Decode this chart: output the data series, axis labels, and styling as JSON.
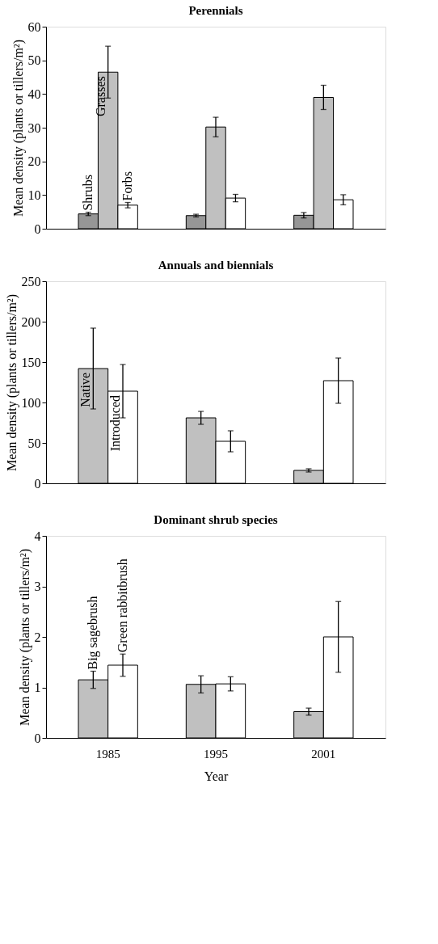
{
  "chart_data": [
    {
      "type": "bar",
      "title": "Perennials",
      "ylabel": "Mean density (plants or tillers/m²)",
      "categories": [
        "1985",
        "1995",
        "2001"
      ],
      "ylim": [
        0,
        60
      ],
      "yticks": [
        0,
        10,
        20,
        30,
        40,
        50,
        60
      ],
      "grid": false,
      "legend": false,
      "tick_labels": "y",
      "series": [
        {
          "name": "Shrubs",
          "color": "#969696",
          "values": [
            4.4,
            3.9,
            4.0
          ],
          "errors": [
            0.5,
            0.4,
            0.8
          ]
        },
        {
          "name": "Grasses",
          "color": "#c0c0c0",
          "values": [
            46.5,
            30.2,
            39.0
          ],
          "errors": [
            7.7,
            2.9,
            3.6
          ]
        },
        {
          "name": "Forbs",
          "color": "#ffffff",
          "values": [
            7.0,
            9.1,
            8.6
          ],
          "errors": [
            0.8,
            1.1,
            1.5
          ]
        }
      ]
    },
    {
      "type": "bar",
      "title": "Annuals and biennials",
      "ylabel": "Mean density (plants or tillers/m²)",
      "categories": [
        "1985",
        "1995",
        "2001"
      ],
      "ylim": [
        0,
        250
      ],
      "yticks": [
        0,
        50,
        100,
        150,
        200,
        250
      ],
      "grid": false,
      "legend": false,
      "tick_labels": "y",
      "series": [
        {
          "name": "Native",
          "color": "#c0c0c0",
          "values": [
            142,
            81,
            16
          ],
          "errors": [
            50,
            8,
            2
          ]
        },
        {
          "name": "Introduced",
          "color": "#ffffff",
          "values": [
            114,
            52,
            127
          ],
          "errors": [
            33,
            13,
            28
          ]
        }
      ]
    },
    {
      "type": "bar",
      "title": "Dominant shrub species",
      "ylabel": "Mean density (plants or tillers/m²)",
      "xlabel": "Year",
      "categories": [
        "1985",
        "1995",
        "2001"
      ],
      "ylim": [
        0,
        4
      ],
      "yticks": [
        0,
        1,
        2,
        3,
        4
      ],
      "grid": false,
      "legend": false,
      "series": [
        {
          "name": "Big sagebrush",
          "color": "#c0c0c0",
          "values": [
            1.15,
            1.06,
            0.52
          ],
          "errors": [
            0.17,
            0.17,
            0.07
          ]
        },
        {
          "name": "Green rabbitbrush",
          "color": "#ffffff",
          "values": [
            1.44,
            1.07,
            2.0
          ],
          "errors": [
            0.22,
            0.14,
            0.7
          ]
        }
      ]
    }
  ]
}
